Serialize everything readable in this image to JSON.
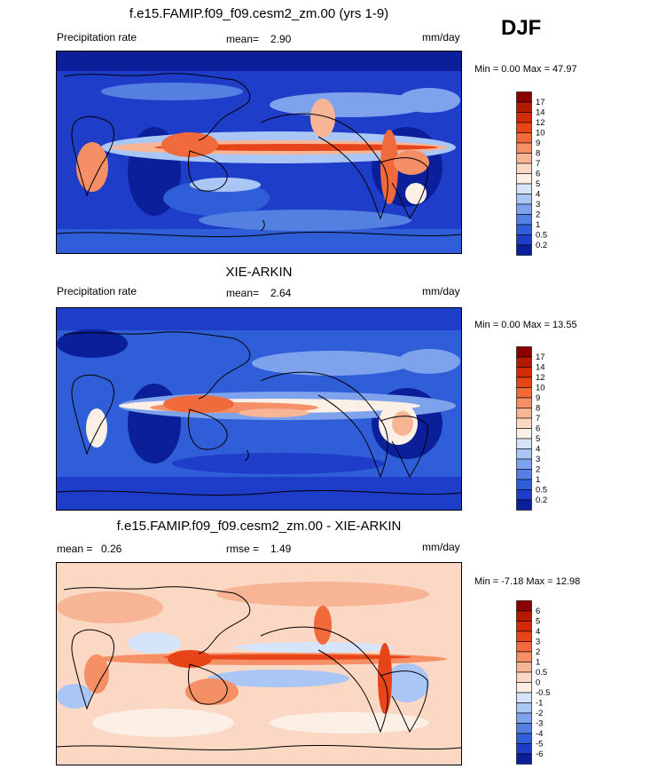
{
  "season": "DJF",
  "panels": [
    {
      "title": "f.e15.FAMIP.f09_f09.cesm2_zm.00 (yrs 1-9)",
      "left_label": "Precipitation rate",
      "stat_label": "mean=",
      "stat_value": "2.90",
      "stat2_label": "",
      "stat2_value": "",
      "units": "mm/day",
      "minmax": "Min =  0.00 Max =  47.97",
      "colorbar": {
        "ticks": [
          "17",
          "14",
          "12",
          "10",
          "9",
          "8",
          "7",
          "6",
          "5",
          "4",
          "3",
          "2",
          "1",
          "0.5",
          "0.2"
        ],
        "colors": [
          "#8b0000",
          "#b41a00",
          "#d42a0a",
          "#e8441a",
          "#f06a3c",
          "#f48f66",
          "#f8b596",
          "#fbd8c4",
          "#fbefe6",
          "#d6e4fa",
          "#aac6f4",
          "#7ea3ec",
          "#5480e2",
          "#2f5ed8",
          "#1e3dc8",
          "#0c1f9a"
        ]
      }
    },
    {
      "title": "XIE-ARKIN",
      "left_label": "Precipitation rate",
      "stat_label": "mean=",
      "stat_value": "2.64",
      "stat2_label": "",
      "stat2_value": "",
      "units": "mm/day",
      "minmax": "Min =  0.00 Max =  13.55",
      "colorbar": {
        "ticks": [
          "17",
          "14",
          "12",
          "10",
          "9",
          "8",
          "7",
          "6",
          "5",
          "4",
          "3",
          "2",
          "1",
          "0.5",
          "0.2"
        ],
        "colors": [
          "#8b0000",
          "#b41a00",
          "#d42a0a",
          "#e8441a",
          "#f06a3c",
          "#f48f66",
          "#f8b596",
          "#fbd8c4",
          "#fbefe6",
          "#d6e4fa",
          "#aac6f4",
          "#7ea3ec",
          "#5480e2",
          "#2f5ed8",
          "#1e3dc8",
          "#0c1f9a"
        ]
      }
    },
    {
      "title": "f.e15.FAMIP.f09_f09.cesm2_zm.00 - XIE-ARKIN",
      "left_label": "mean =",
      "stat_label": "rmse =",
      "stat_value": "1.49",
      "left_value": "0.26",
      "stat2_label": "",
      "stat2_value": "",
      "units": "mm/day",
      "minmax": "Min = -7.18 Max = 12.98",
      "colorbar": {
        "ticks": [
          "6",
          "5",
          "4",
          "3",
          "2",
          "1",
          "0.5",
          "0",
          "-0.5",
          "-1",
          "-2",
          "-3",
          "-4",
          "-5",
          "-6"
        ],
        "colors": [
          "#8b0000",
          "#b41a00",
          "#d42a0a",
          "#e8441a",
          "#f06a3c",
          "#f48f66",
          "#f8b596",
          "#fbd8c4",
          "#fbefe6",
          "#d6e4fa",
          "#aac6f4",
          "#7ea3ec",
          "#5480e2",
          "#2f5ed8",
          "#1e3dc8",
          "#0c1f9a"
        ]
      }
    }
  ],
  "map_colors": {
    "precip_base": "#1e3dc8",
    "precip_dark": "#0c1f9a",
    "precip_mid": "#2f5ed8",
    "precip_light": "#7ea3ec",
    "precip_pale": "#d6e4fa",
    "precip_warm": "#f8b596",
    "precip_red": "#e8441a",
    "diff_base": "#fbd8c4",
    "diff_blue": "#aac6f4",
    "diff_red": "#e8441a",
    "coast": "#000000"
  }
}
